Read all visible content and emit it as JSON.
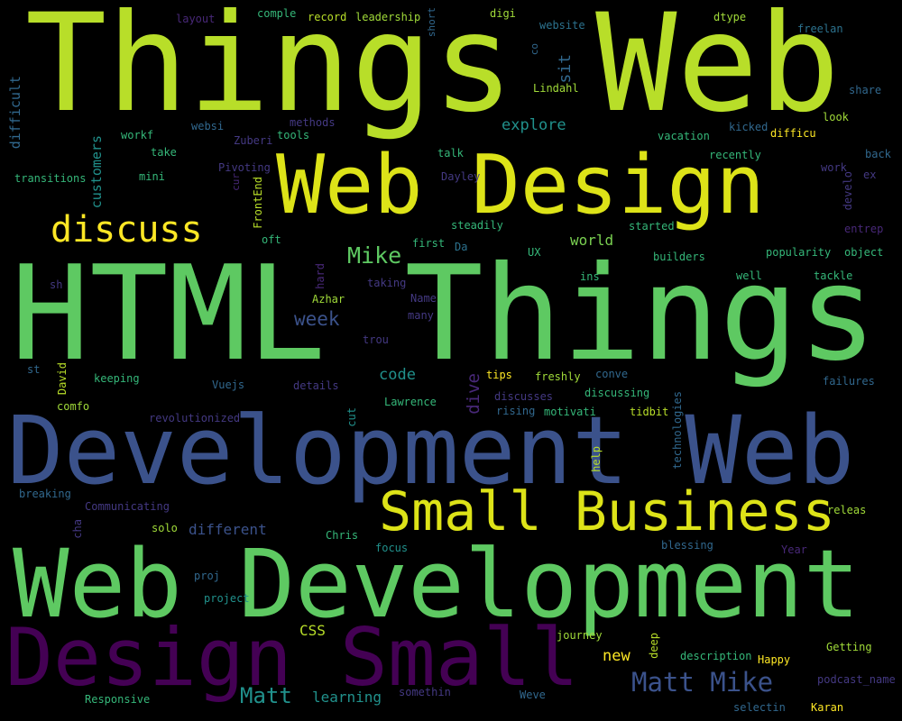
{
  "words": [
    {
      "text": "Things Web",
      "color": "#b8de29"
    },
    {
      "text": "Web Design",
      "color": "#dde318"
    },
    {
      "text": "HTML Things",
      "color": "#5ec962"
    },
    {
      "text": "Development Web",
      "color": "#3b528b"
    },
    {
      "text": "Web Development",
      "color": "#5ec962"
    },
    {
      "text": "Design Small",
      "color": "#440154"
    },
    {
      "text": "Small Business",
      "color": "#dde318"
    },
    {
      "text": "discuss",
      "color": "#fde725"
    },
    {
      "text": "Matt Mike",
      "color": "#3b528b"
    },
    {
      "text": "Mike",
      "color": "#5ec962"
    },
    {
      "text": "Matt",
      "color": "#21918c"
    },
    {
      "text": "week",
      "color": "#3b528b"
    },
    {
      "text": "explore",
      "color": "#21918c"
    },
    {
      "text": "code",
      "color": "#21918c"
    },
    {
      "text": "world",
      "color": "#7ad151"
    },
    {
      "text": "different",
      "color": "#3b528b"
    },
    {
      "text": "new",
      "color": "#fde725"
    },
    {
      "text": "learning",
      "color": "#21918c"
    },
    {
      "text": "CSS",
      "color": "#b8de29"
    },
    {
      "text": "layout",
      "color": "#482878"
    },
    {
      "text": "comple",
      "color": "#35b779"
    },
    {
      "text": "record",
      "color": "#b8de29"
    },
    {
      "text": "leadership",
      "color": "#a0da39"
    },
    {
      "text": "digi",
      "color": "#a0da39"
    },
    {
      "text": "website",
      "color": "#2c728e"
    },
    {
      "text": "dtype",
      "color": "#a0da39"
    },
    {
      "text": "freelan",
      "color": "#2c728e"
    },
    {
      "text": "Lindahl",
      "color": "#a0da39"
    },
    {
      "text": "share",
      "color": "#31688e"
    },
    {
      "text": "look",
      "color": "#a0da39"
    },
    {
      "text": "kicked",
      "color": "#31688e"
    },
    {
      "text": "difficu",
      "color": "#fde725"
    },
    {
      "text": "methods",
      "color": "#443983"
    },
    {
      "text": "websi",
      "color": "#31688e"
    },
    {
      "text": "workf",
      "color": "#35b779"
    },
    {
      "text": "Zuberi",
      "color": "#443983"
    },
    {
      "text": "tools",
      "color": "#35b779"
    },
    {
      "text": "talk",
      "color": "#35b779"
    },
    {
      "text": "vacation",
      "color": "#35b779"
    },
    {
      "text": "take",
      "color": "#35b779"
    },
    {
      "text": "recently",
      "color": "#35b779"
    },
    {
      "text": "back",
      "color": "#31688e"
    },
    {
      "text": "transitions",
      "color": "#35b779"
    },
    {
      "text": "mini",
      "color": "#35b779"
    },
    {
      "text": "Pivoting",
      "color": "#443983"
    },
    {
      "text": "Dayley",
      "color": "#443983"
    },
    {
      "text": "work",
      "color": "#443983"
    },
    {
      "text": "ex",
      "color": "#443983"
    },
    {
      "text": "steadily",
      "color": "#35b779"
    },
    {
      "text": "started",
      "color": "#35b779"
    },
    {
      "text": "entrep",
      "color": "#482878"
    },
    {
      "text": "oft",
      "color": "#35b779"
    },
    {
      "text": "first",
      "color": "#35b779"
    },
    {
      "text": "Da",
      "color": "#2c728e"
    },
    {
      "text": "UX",
      "color": "#35b779"
    },
    {
      "text": "builders",
      "color": "#35b779"
    },
    {
      "text": "popularity",
      "color": "#35b779"
    },
    {
      "text": "object",
      "color": "#35b779"
    },
    {
      "text": "ins",
      "color": "#35b779"
    },
    {
      "text": "well",
      "color": "#35b779"
    },
    {
      "text": "tackle",
      "color": "#35b779"
    },
    {
      "text": "sh",
      "color": "#443983"
    },
    {
      "text": "taking",
      "color": "#443983"
    },
    {
      "text": "Azhar",
      "color": "#a0da39"
    },
    {
      "text": "Name",
      "color": "#443983"
    },
    {
      "text": "many",
      "color": "#443983"
    },
    {
      "text": "trou",
      "color": "#443983"
    },
    {
      "text": "st",
      "color": "#31688e"
    },
    {
      "text": "keeping",
      "color": "#35b779"
    },
    {
      "text": "Vuejs",
      "color": "#31688e"
    },
    {
      "text": "details",
      "color": "#443983"
    },
    {
      "text": "tips",
      "color": "#fde725"
    },
    {
      "text": "freshly",
      "color": "#a0da39"
    },
    {
      "text": "conve",
      "color": "#31688e"
    },
    {
      "text": "failures",
      "color": "#31688e"
    },
    {
      "text": "discussing",
      "color": "#35b779"
    },
    {
      "text": "comfo",
      "color": "#a0da39"
    },
    {
      "text": "Lawrence",
      "color": "#35b779"
    },
    {
      "text": "discusses",
      "color": "#443983"
    },
    {
      "text": "revolutionized",
      "color": "#443983"
    },
    {
      "text": "rising",
      "color": "#31688e"
    },
    {
      "text": "motivati",
      "color": "#35b779"
    },
    {
      "text": "tidbit",
      "color": "#b8de29"
    },
    {
      "text": "breaking",
      "color": "#31688e"
    },
    {
      "text": "Communicating",
      "color": "#443983"
    },
    {
      "text": "solo",
      "color": "#a0da39"
    },
    {
      "text": "Chris",
      "color": "#35b779"
    },
    {
      "text": "releas",
      "color": "#a0da39"
    },
    {
      "text": "focus",
      "color": "#21918c"
    },
    {
      "text": "blessing",
      "color": "#31688e"
    },
    {
      "text": "Year",
      "color": "#482878"
    },
    {
      "text": "proj",
      "color": "#31688e"
    },
    {
      "text": "project",
      "color": "#21918c"
    },
    {
      "text": "journey",
      "color": "#a0da39"
    },
    {
      "text": "description",
      "color": "#35b779"
    },
    {
      "text": "Happy",
      "color": "#fde725"
    },
    {
      "text": "Getting",
      "color": "#a0da39"
    },
    {
      "text": "podcast_name",
      "color": "#443983"
    },
    {
      "text": "Responsive",
      "color": "#35b779"
    },
    {
      "text": "somethin",
      "color": "#443983"
    },
    {
      "text": "Weve",
      "color": "#31688e"
    },
    {
      "text": "selectin",
      "color": "#31688e"
    },
    {
      "text": "Karan",
      "color": "#fde725"
    },
    {
      "text": "difficult",
      "color": "#31688e"
    },
    {
      "text": "customers",
      "color": "#21918c"
    },
    {
      "text": "sit",
      "color": "#31688e"
    },
    {
      "text": "short",
      "color": "#31688e"
    },
    {
      "text": "co",
      "color": "#31688e"
    },
    {
      "text": "cur",
      "color": "#482878"
    },
    {
      "text": "FrontEnd",
      "color": "#b8de29"
    },
    {
      "text": "hard",
      "color": "#482878"
    },
    {
      "text": "develo",
      "color": "#443983"
    },
    {
      "text": "David",
      "color": "#b8de29"
    },
    {
      "text": "dive",
      "color": "#482878"
    },
    {
      "text": "cut",
      "color": "#21918c"
    },
    {
      "text": "technologies",
      "color": "#31688e"
    },
    {
      "text": "help",
      "color": "#b8de29"
    },
    {
      "text": "cha",
      "color": "#443983"
    },
    {
      "text": "deep",
      "color": "#b8de29"
    }
  ]
}
